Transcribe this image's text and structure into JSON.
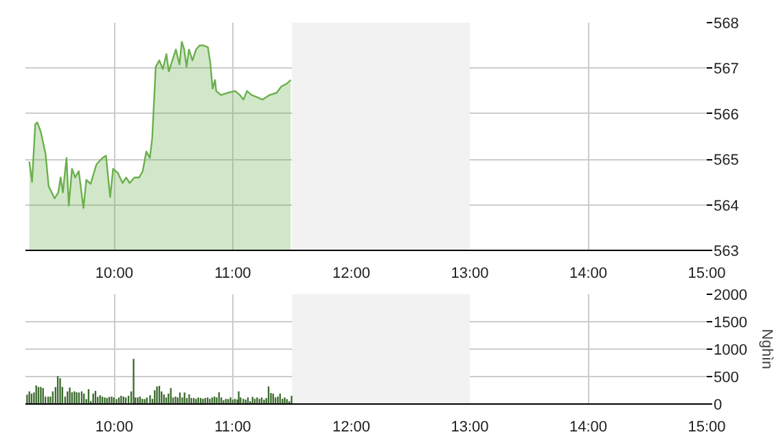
{
  "chart_data": [
    {
      "type": "area",
      "color": "#6ab04c",
      "xlim": [
        9.25,
        15
      ],
      "ylim": [
        563,
        568
      ],
      "yticks": [
        563,
        564,
        565,
        566,
        567,
        568
      ],
      "grid": true,
      "xticks": [
        {
          "value": 10,
          "label": "10:00"
        },
        {
          "value": 11,
          "label": "11:00"
        },
        {
          "value": 12,
          "label": "12:00"
        },
        {
          "value": 13,
          "label": "13:00"
        },
        {
          "value": 14,
          "label": "14:00"
        },
        {
          "value": 15,
          "label": "15:00"
        }
      ],
      "bands": [
        {
          "axis": "x",
          "from": 11.5,
          "to": 13,
          "color": "#f2f2f2"
        }
      ],
      "x": [
        9.283,
        9.306,
        9.333,
        9.35,
        9.38,
        9.42,
        9.446,
        9.496,
        9.527,
        9.547,
        9.566,
        9.597,
        9.616,
        9.643,
        9.67,
        9.7,
        9.74,
        9.764,
        9.8,
        9.85,
        9.9,
        9.93,
        9.965,
        9.99,
        10.03,
        10.07,
        10.1,
        10.13,
        10.17,
        10.21,
        10.24,
        10.27,
        10.3,
        10.32,
        10.35,
        10.38,
        10.41,
        10.44,
        10.46,
        10.49,
        10.52,
        10.55,
        10.57,
        10.59,
        10.61,
        10.63,
        10.66,
        10.69,
        10.72,
        10.75,
        10.79,
        10.81,
        10.83,
        10.85,
        10.86,
        10.9,
        10.96,
        11.02,
        11.06,
        11.09,
        11.12,
        11.16,
        11.19,
        11.25,
        11.31,
        11.37,
        11.41,
        11.45,
        11.49
      ],
      "values": [
        564.95,
        564.5,
        565.77,
        565.81,
        565.6,
        565.12,
        564.41,
        564.14,
        564.27,
        564.6,
        564.27,
        565.03,
        563.98,
        564.79,
        564.6,
        564.74,
        563.93,
        564.55,
        564.46,
        564.89,
        565.03,
        565.08,
        564.17,
        564.79,
        564.7,
        564.48,
        564.6,
        564.48,
        564.6,
        564.6,
        564.74,
        565.17,
        565.03,
        565.46,
        567.03,
        567.17,
        566.98,
        567.31,
        566.93,
        567.17,
        567.41,
        567.08,
        567.58,
        567.41,
        567.03,
        567.41,
        567.17,
        567.41,
        567.5,
        567.5,
        567.46,
        567.12,
        566.55,
        566.74,
        566.5,
        566.41,
        566.46,
        566.5,
        566.41,
        566.31,
        566.5,
        566.41,
        566.38,
        566.31,
        566.41,
        566.46,
        566.6,
        566.65,
        566.74
      ]
    },
    {
      "type": "bar",
      "color": "#3d6b2f",
      "ylabel": "Nghìn",
      "xlim": [
        9.25,
        15
      ],
      "ylim": [
        0,
        2000
      ],
      "yticks": [
        0,
        500,
        1000,
        1500,
        2000
      ],
      "grid": true,
      "xticks": [
        {
          "value": 10,
          "label": "10:00"
        },
        {
          "value": 11,
          "label": "11:00"
        },
        {
          "value": 12,
          "label": "12:00"
        },
        {
          "value": 13,
          "label": "13:00"
        },
        {
          "value": 14,
          "label": "14:00"
        },
        {
          "value": 15,
          "label": "15:00"
        }
      ],
      "bands": [
        {
          "axis": "x",
          "from": 11.5,
          "to": 13,
          "color": "#f2f2f2"
        }
      ],
      "x": [
        9.264,
        9.283,
        9.302,
        9.322,
        9.341,
        9.36,
        9.38,
        9.399,
        9.419,
        9.442,
        9.461,
        9.481,
        9.504,
        9.523,
        9.543,
        9.562,
        9.585,
        9.605,
        9.624,
        9.643,
        9.663,
        9.682,
        9.702,
        9.725,
        9.744,
        9.764,
        9.783,
        9.802,
        9.822,
        9.841,
        9.86,
        9.88,
        9.899,
        9.919,
        9.938,
        9.957,
        9.977,
        9.996,
        10.019,
        10.039,
        10.058,
        10.078,
        10.097,
        10.12,
        10.143,
        10.163,
        10.178,
        10.198,
        10.217,
        10.236,
        10.256,
        10.275,
        10.302,
        10.322,
        10.341,
        10.36,
        10.38,
        10.399,
        10.419,
        10.438,
        10.457,
        10.477,
        10.496,
        10.516,
        10.535,
        10.554,
        10.574,
        10.593,
        10.612,
        10.632,
        10.651,
        10.671,
        10.69,
        10.709,
        10.729,
        10.748,
        10.767,
        10.787,
        10.806,
        10.826,
        10.845,
        10.864,
        10.884,
        10.903,
        10.922,
        10.942,
        10.961,
        10.981,
        11.0,
        11.019,
        11.039,
        11.05,
        11.066,
        11.089,
        11.109,
        11.128,
        11.147,
        11.167,
        11.186,
        11.205,
        11.225,
        11.244,
        11.264,
        11.283,
        11.302,
        11.322,
        11.341,
        11.36,
        11.38,
        11.399,
        11.419,
        11.438,
        11.457,
        11.477,
        11.496
      ],
      "values": [
        170,
        230,
        190,
        210,
        340,
        310,
        310,
        290,
        135,
        135,
        135,
        230,
        310,
        510,
        470,
        310,
        135,
        230,
        300,
        215,
        230,
        215,
        210,
        230,
        190,
        90,
        270,
        55,
        190,
        240,
        130,
        160,
        135,
        120,
        110,
        130,
        135,
        120,
        90,
        120,
        150,
        135,
        120,
        150,
        230,
        823,
        120,
        120,
        135,
        95,
        90,
        120,
        160,
        95,
        250,
        320,
        330,
        230,
        175,
        120,
        190,
        290,
        120,
        135,
        120,
        210,
        120,
        210,
        110,
        175,
        110,
        110,
        95,
        120,
        110,
        95,
        110,
        120,
        95,
        120,
        135,
        120,
        215,
        120,
        70,
        95,
        90,
        120,
        80,
        95,
        80,
        230,
        120,
        95,
        80,
        120,
        50,
        130,
        95,
        120,
        95,
        120,
        80,
        110,
        320,
        200,
        190,
        120,
        135,
        190,
        95,
        120,
        90,
        50,
        150
      ]
    }
  ]
}
